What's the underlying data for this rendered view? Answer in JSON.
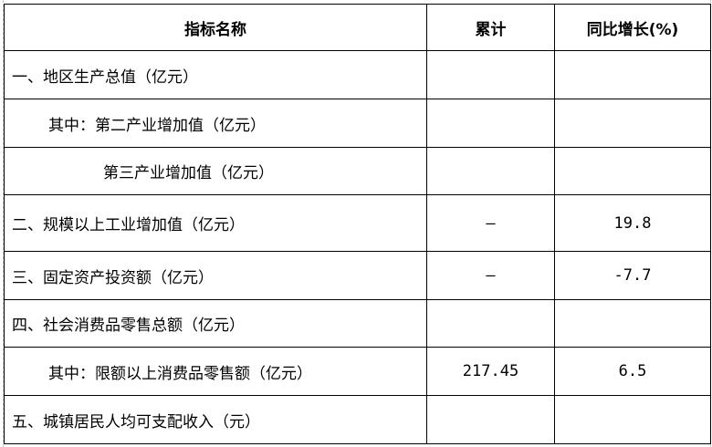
{
  "table": {
    "headers": [
      "指标名称",
      "累计",
      "同比增长(%)"
    ],
    "rows": [
      {
        "name": "一、地区生产总值（亿元）",
        "cumulative": "",
        "yoy": ""
      },
      {
        "name": "其中：第二产业增加值（亿元）",
        "cumulative": "",
        "yoy": ""
      },
      {
        "name": "第三产业增加值（亿元）",
        "cumulative": "",
        "yoy": ""
      },
      {
        "name": "二、规模以上工业增加值（亿元）",
        "cumulative": "—",
        "yoy": "19.8"
      },
      {
        "name": "三、固定资产投资额（亿元）",
        "cumulative": "—",
        "yoy": "-7.7"
      },
      {
        "name": "四、社会消费品零售总额（亿元）",
        "cumulative": "",
        "yoy": ""
      },
      {
        "name": "其中：限额以上消费品零售额（亿元）",
        "cumulative": "217.45",
        "yoy": "6.5"
      },
      {
        "name": "五、城镇居民人均可支配收入（元）",
        "cumulative": "",
        "yoy": ""
      }
    ]
  }
}
